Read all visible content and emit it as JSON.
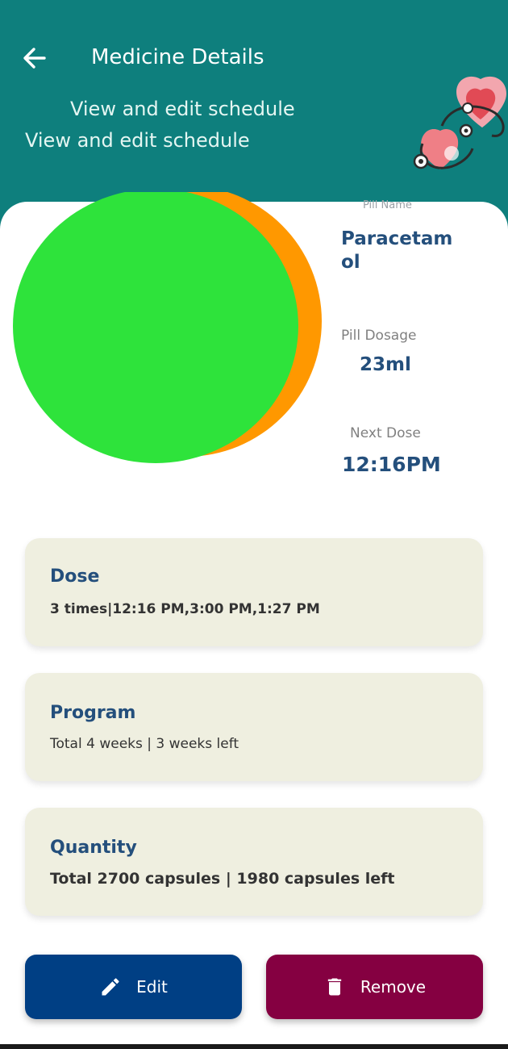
{
  "header": {
    "title": "Medicine Details",
    "subtitle": "View and edit schedule",
    "back_icon": "arrow-left-icon",
    "background_color": "#0e7f7d",
    "illustration": "heart-stethoscope-illustration"
  },
  "pill": {
    "image": "pill-circle-image",
    "name_label": "Pill Name",
    "name": "Paracetamol",
    "dosage_label": "Pill Dosage",
    "dosage": "23ml",
    "next_dose_label": "Next Dose",
    "next_dose": "12:16PM",
    "colors": {
      "circle_front": "#2ee33b",
      "circle_back": "#ff9800"
    }
  },
  "cards": {
    "dose": {
      "title": "Dose",
      "detail": "3 times|12:16 PM,3:00 PM,1:27 PM"
    },
    "program": {
      "title": "Program",
      "detail": "Total 4 weeks | 3 weeks left"
    },
    "quantity": {
      "title": "Quantity",
      "detail": "Total 2700 capsules | 1980 capsules left"
    }
  },
  "actions": {
    "edit": {
      "label": "Edit",
      "icon": "pencil-icon",
      "color": "#003f84"
    },
    "remove": {
      "label": "Remove",
      "icon": "trash-icon",
      "color": "#850041"
    }
  }
}
